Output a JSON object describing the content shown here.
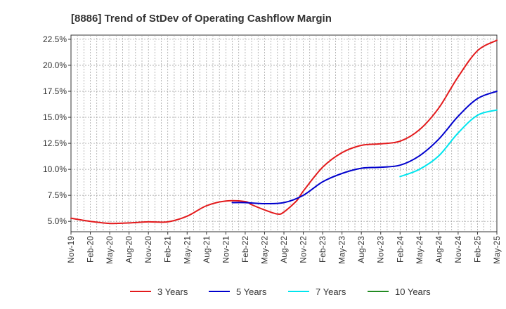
{
  "chart_data": {
    "type": "line",
    "title": "[8886]  Trend of StDev of Operating Cashflow Margin",
    "xlabel": "",
    "ylabel": "",
    "ylim": [
      4.0,
      22.9
    ],
    "yticks": [
      5.0,
      7.5,
      10.0,
      12.5,
      15.0,
      17.5,
      20.0,
      22.5
    ],
    "ytick_labels": [
      "5.0%",
      "7.5%",
      "10.0%",
      "12.5%",
      "15.0%",
      "17.5%",
      "20.0%",
      "22.5%"
    ],
    "x_tick_labels": [
      "Nov-19",
      "Feb-20",
      "May-20",
      "Aug-20",
      "Nov-20",
      "Feb-21",
      "May-21",
      "Aug-21",
      "Nov-21",
      "Feb-22",
      "May-22",
      "Aug-22",
      "Nov-22",
      "Feb-23",
      "May-23",
      "Aug-23",
      "Nov-23",
      "Feb-24",
      "May-24",
      "Aug-24",
      "Nov-24",
      "Feb-25",
      "May-25"
    ],
    "x_unit": "months since Nov-19",
    "x_range": [
      0,
      66
    ],
    "grid": true,
    "legend_position": "bottom",
    "series": [
      {
        "name": "3 Years",
        "color": "#e31a1c",
        "x": [
          0,
          3,
          6,
          9,
          12,
          15,
          18,
          21,
          24,
          27,
          28,
          30,
          32,
          33,
          35,
          36,
          39,
          42,
          45,
          48,
          51,
          54,
          57,
          60,
          63,
          66
        ],
        "values": [
          5.3,
          5.0,
          4.8,
          4.85,
          4.95,
          4.95,
          5.5,
          6.5,
          6.95,
          6.9,
          6.6,
          6.1,
          5.7,
          5.9,
          7.0,
          7.9,
          10.2,
          11.6,
          12.3,
          12.45,
          12.7,
          13.8,
          15.9,
          18.9,
          21.4,
          22.4
        ]
      },
      {
        "name": "5 Years",
        "color": "#0000cd",
        "x": [
          25,
          27,
          30,
          33,
          36,
          39,
          42,
          45,
          48,
          51,
          54,
          57,
          60,
          63,
          66
        ],
        "values": [
          6.8,
          6.8,
          6.7,
          6.8,
          7.5,
          8.8,
          9.6,
          10.1,
          10.2,
          10.4,
          11.3,
          12.9,
          15.1,
          16.8,
          17.5
        ]
      },
      {
        "name": "7 Years",
        "color": "#00e5ee",
        "x": [
          51,
          54,
          57,
          60,
          63,
          66
        ],
        "values": [
          9.3,
          10.0,
          11.3,
          13.5,
          15.2,
          15.7
        ]
      },
      {
        "name": "10 Years",
        "color": "#228b22",
        "x": [],
        "values": []
      }
    ]
  }
}
